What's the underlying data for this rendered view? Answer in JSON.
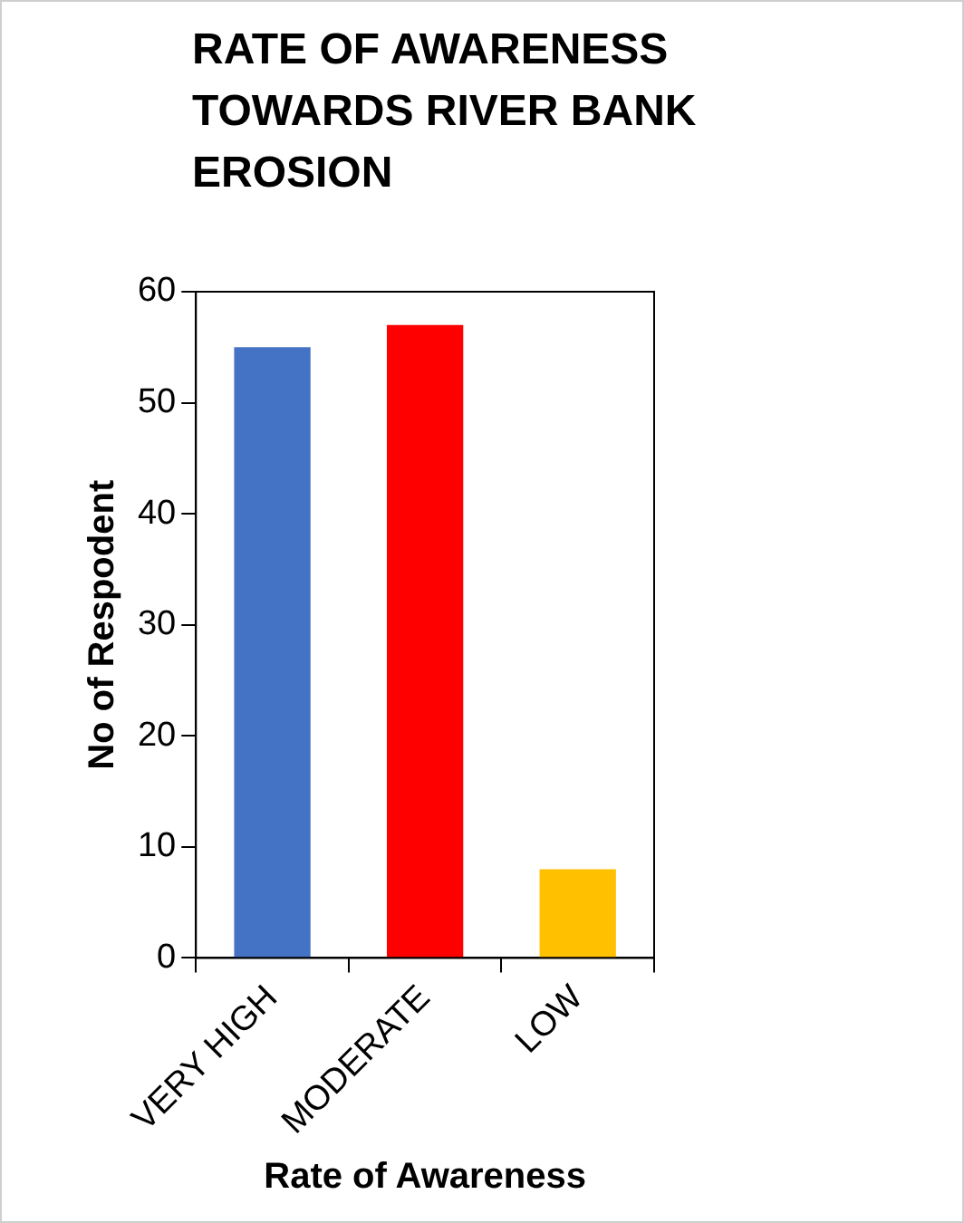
{
  "chart_data": {
    "type": "bar",
    "title": "RATE OF AWARENESS TOWARDS RIVER BANK EROSION",
    "xlabel": "Rate of Awareness",
    "ylabel": "No of Respodent",
    "categories": [
      "VERY HIGH",
      "MODERATE",
      "LOW"
    ],
    "values": [
      55,
      57,
      8
    ],
    "colors": [
      "#4472c4",
      "#ff0000",
      "#ffc000"
    ],
    "ylim": [
      0,
      60
    ],
    "yticks": [
      0,
      10,
      20,
      30,
      40,
      50,
      60
    ],
    "grid": false,
    "legend": false
  }
}
